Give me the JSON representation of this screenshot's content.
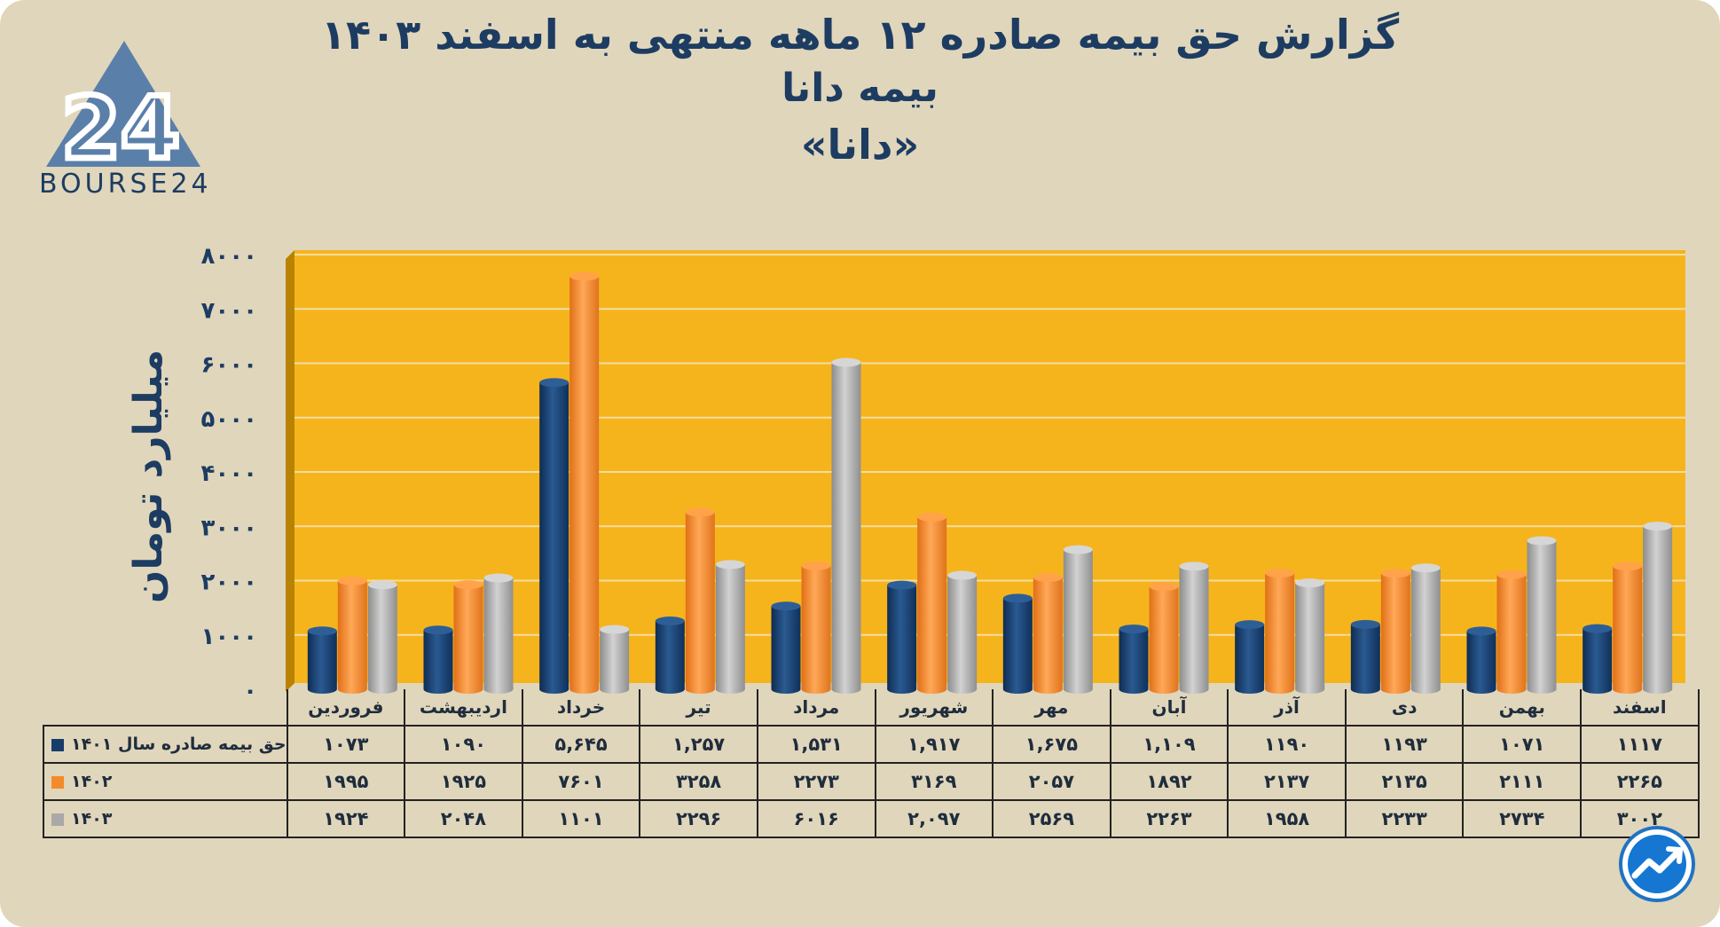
{
  "title": {
    "line1": "گزارش  حق بیمه صادره ۱۲ ماهه منتهی به اسفند ۱۴۰۳",
    "line2": "بیمه دانا",
    "line3": "«دانا»"
  },
  "logo": {
    "text": "BOURSE24",
    "mark": "24"
  },
  "badge_icon": "trend-chart-icon",
  "colors": {
    "background": "#e0d6bb",
    "plot_area": "#f6b41c",
    "series_1401": "#173d6b",
    "series_1402": "#f38a2c",
    "series_1403": "#a9a9a9",
    "text": "#1d3c62"
  },
  "chart_data": {
    "type": "bar",
    "ylabel": "میلیارد تومان",
    "ylim": [
      0,
      8000
    ],
    "yticks": [
      "۰",
      "۱۰۰۰",
      "۲۰۰۰",
      "۳۰۰۰",
      "۴۰۰۰",
      "۵۰۰۰",
      "۶۰۰۰",
      "۷۰۰۰",
      "۸۰۰۰"
    ],
    "grid": true,
    "categories": [
      "فروردین",
      "اردیبهشت",
      "خرداد",
      "تیر",
      "مرداد",
      "شهریور",
      "مهر",
      "آبان",
      "آذر",
      "دی",
      "بهمن",
      "اسفند"
    ],
    "series": [
      {
        "name": "حق بیمه صادره سال ۱۴۰۱",
        "values": [
          1073,
          1090,
          5645,
          1257,
          1531,
          1917,
          1675,
          1109,
          1190,
          1193,
          1071,
          1117
        ],
        "labels": [
          "۱۰۷۳",
          "۱۰۹۰",
          "۵,۶۴۵",
          "۱,۲۵۷",
          "۱,۵۳۱",
          "۱,۹۱۷",
          "۱,۶۷۵",
          "۱,۱۰۹",
          "۱۱۹۰",
          "۱۱۹۳",
          "۱۰۷۱",
          "۱۱۱۷"
        ]
      },
      {
        "name": "۱۴۰۲",
        "values": [
          1995,
          1925,
          7601,
          3258,
          2273,
          3169,
          2057,
          1892,
          2137,
          2135,
          2111,
          2265
        ],
        "labels": [
          "۱۹۹۵",
          "۱۹۲۵",
          "۷۶۰۱",
          "۳۲۵۸",
          "۲۲۷۳",
          "۳۱۶۹",
          "۲۰۵۷",
          "۱۸۹۲",
          "۲۱۳۷",
          "۲۱۳۵",
          "۲۱۱۱",
          "۲۲۶۵"
        ]
      },
      {
        "name": "۱۴۰۳",
        "values": [
          1924,
          2048,
          1101,
          2296,
          6016,
          2097,
          2569,
          2263,
          1958,
          2233,
          2734,
          3002
        ],
        "labels": [
          "۱۹۲۴",
          "۲۰۴۸",
          "۱۱۰۱",
          "۲۲۹۶",
          "۶۰۱۶",
          "۲,۰۹۷",
          "۲۵۶۹",
          "۲۲۶۳",
          "۱۹۵۸",
          "۲۲۳۳",
          "۲۷۳۴",
          "۳۰۰۲"
        ]
      }
    ]
  }
}
